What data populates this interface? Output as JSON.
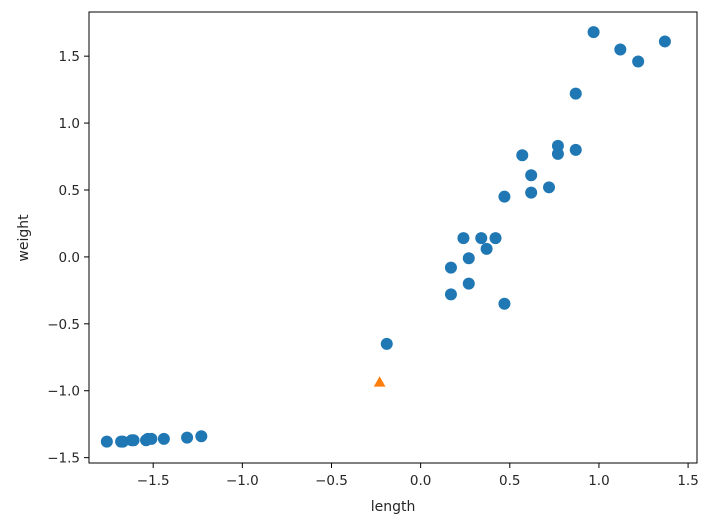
{
  "chart_data": {
    "type": "scatter",
    "title": "",
    "xlabel": "length",
    "ylabel": "weight",
    "xlim": [
      -1.86,
      1.55
    ],
    "ylim": [
      -1.54,
      1.83
    ],
    "x_ticks": [
      -1.5,
      -1.0,
      -0.5,
      0.0,
      0.5,
      1.0,
      1.5
    ],
    "x_tick_labels": [
      "−1.5",
      "−1.0",
      "−0.5",
      "0.0",
      "0.5",
      "1.0",
      "1.5"
    ],
    "y_ticks": [
      -1.5,
      -1.0,
      -0.5,
      0.0,
      0.5,
      1.0,
      1.5
    ],
    "y_tick_labels": [
      "−1.5",
      "−1.0",
      "−0.5",
      "0.0",
      "0.5",
      "1.0",
      "1.5"
    ],
    "grid": false,
    "series": [
      {
        "marker": "circle",
        "color": "#1f77b4",
        "x": [
          -1.76,
          -1.68,
          -1.67,
          -1.62,
          -1.61,
          -1.54,
          -1.53,
          -1.51,
          -1.44,
          -1.31,
          -1.23,
          -0.19,
          0.17,
          0.17,
          0.24,
          0.27,
          0.27,
          0.34,
          0.37,
          0.42,
          0.47,
          0.47,
          0.57,
          0.62,
          0.62,
          0.72,
          0.77,
          0.77,
          0.87,
          0.87,
          0.97,
          1.12,
          1.22,
          1.37
        ],
        "y": [
          -1.38,
          -1.38,
          -1.38,
          -1.37,
          -1.37,
          -1.37,
          -1.36,
          -1.36,
          -1.36,
          -1.35,
          -1.34,
          -0.65,
          -0.08,
          -0.28,
          0.14,
          -0.01,
          -0.2,
          0.14,
          0.06,
          0.14,
          0.45,
          -0.35,
          0.76,
          0.61,
          0.48,
          0.52,
          0.83,
          0.77,
          0.8,
          1.22,
          1.68,
          1.55,
          1.46,
          1.61
        ]
      },
      {
        "marker": "triangle",
        "color": "#ff7f0e",
        "x": [
          -0.23
        ],
        "y": [
          -0.94
        ]
      }
    ]
  }
}
